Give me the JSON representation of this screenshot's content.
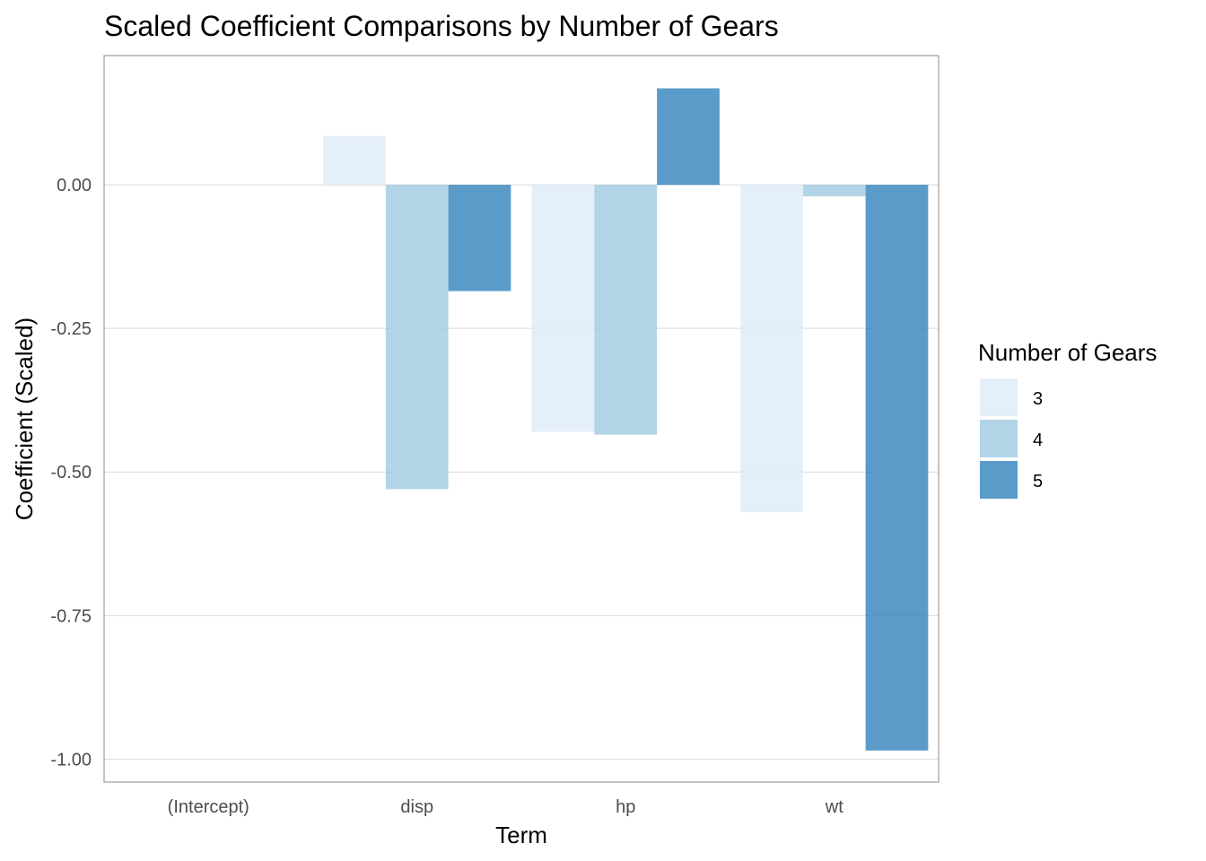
{
  "chart_data": {
    "type": "bar",
    "title": "Scaled Coefficient Comparisons by Number of Gears",
    "xlabel": "Term",
    "ylabel": "Coefficient (Scaled)",
    "categories": [
      "(Intercept)",
      "disp",
      "hp",
      "wt"
    ],
    "series": [
      {
        "name": "3",
        "color": "#deebf7",
        "values": [
          0,
          0.085,
          -0.43,
          -0.57
        ]
      },
      {
        "name": "4",
        "color": "#9ecae1",
        "values": [
          0,
          -0.53,
          -0.435,
          -0.02
        ]
      },
      {
        "name": "5",
        "color": "#3182bd",
        "values": [
          0,
          -0.185,
          0.168,
          -0.985
        ]
      }
    ],
    "ylim": [
      -1.04,
      0.225
    ],
    "yticks": [
      0,
      -0.25,
      -0.5,
      -0.75,
      -1.0
    ],
    "ytick_labels": [
      "0.00",
      "-0.25",
      "-0.50",
      "-0.75",
      "-1.00"
    ],
    "grid": true,
    "bar_opacity": 0.8,
    "legend": {
      "title": "Number of Gears",
      "position": "right",
      "entries": [
        "3",
        "4",
        "5"
      ]
    }
  }
}
